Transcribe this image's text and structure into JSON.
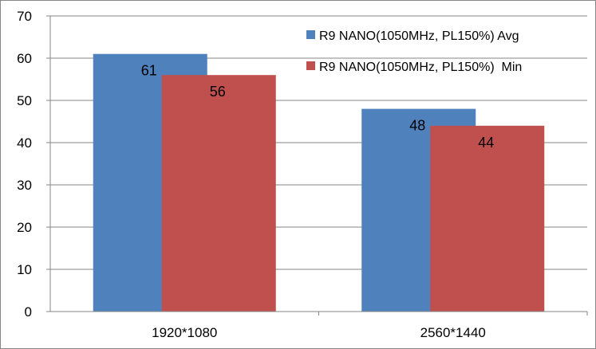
{
  "chart_data": {
    "type": "bar",
    "title": "",
    "xlabel": "",
    "ylabel": "",
    "categories": [
      "1920*1080",
      "2560*1440"
    ],
    "series": [
      {
        "name": "R9 NANO(1050MHz, PL150%) Avg",
        "color": "#4F81BD",
        "values": [
          61,
          48
        ]
      },
      {
        "name": "R9 NANO(1050MHz, PL150%)  Min",
        "color": "#C0504D",
        "values": [
          56,
          44
        ]
      }
    ],
    "ylim": [
      0,
      70
    ],
    "yticks": [
      0,
      10,
      20,
      30,
      40,
      50,
      60,
      70
    ],
    "grid": true,
    "legend_position": "top-right",
    "data_labels": true
  }
}
